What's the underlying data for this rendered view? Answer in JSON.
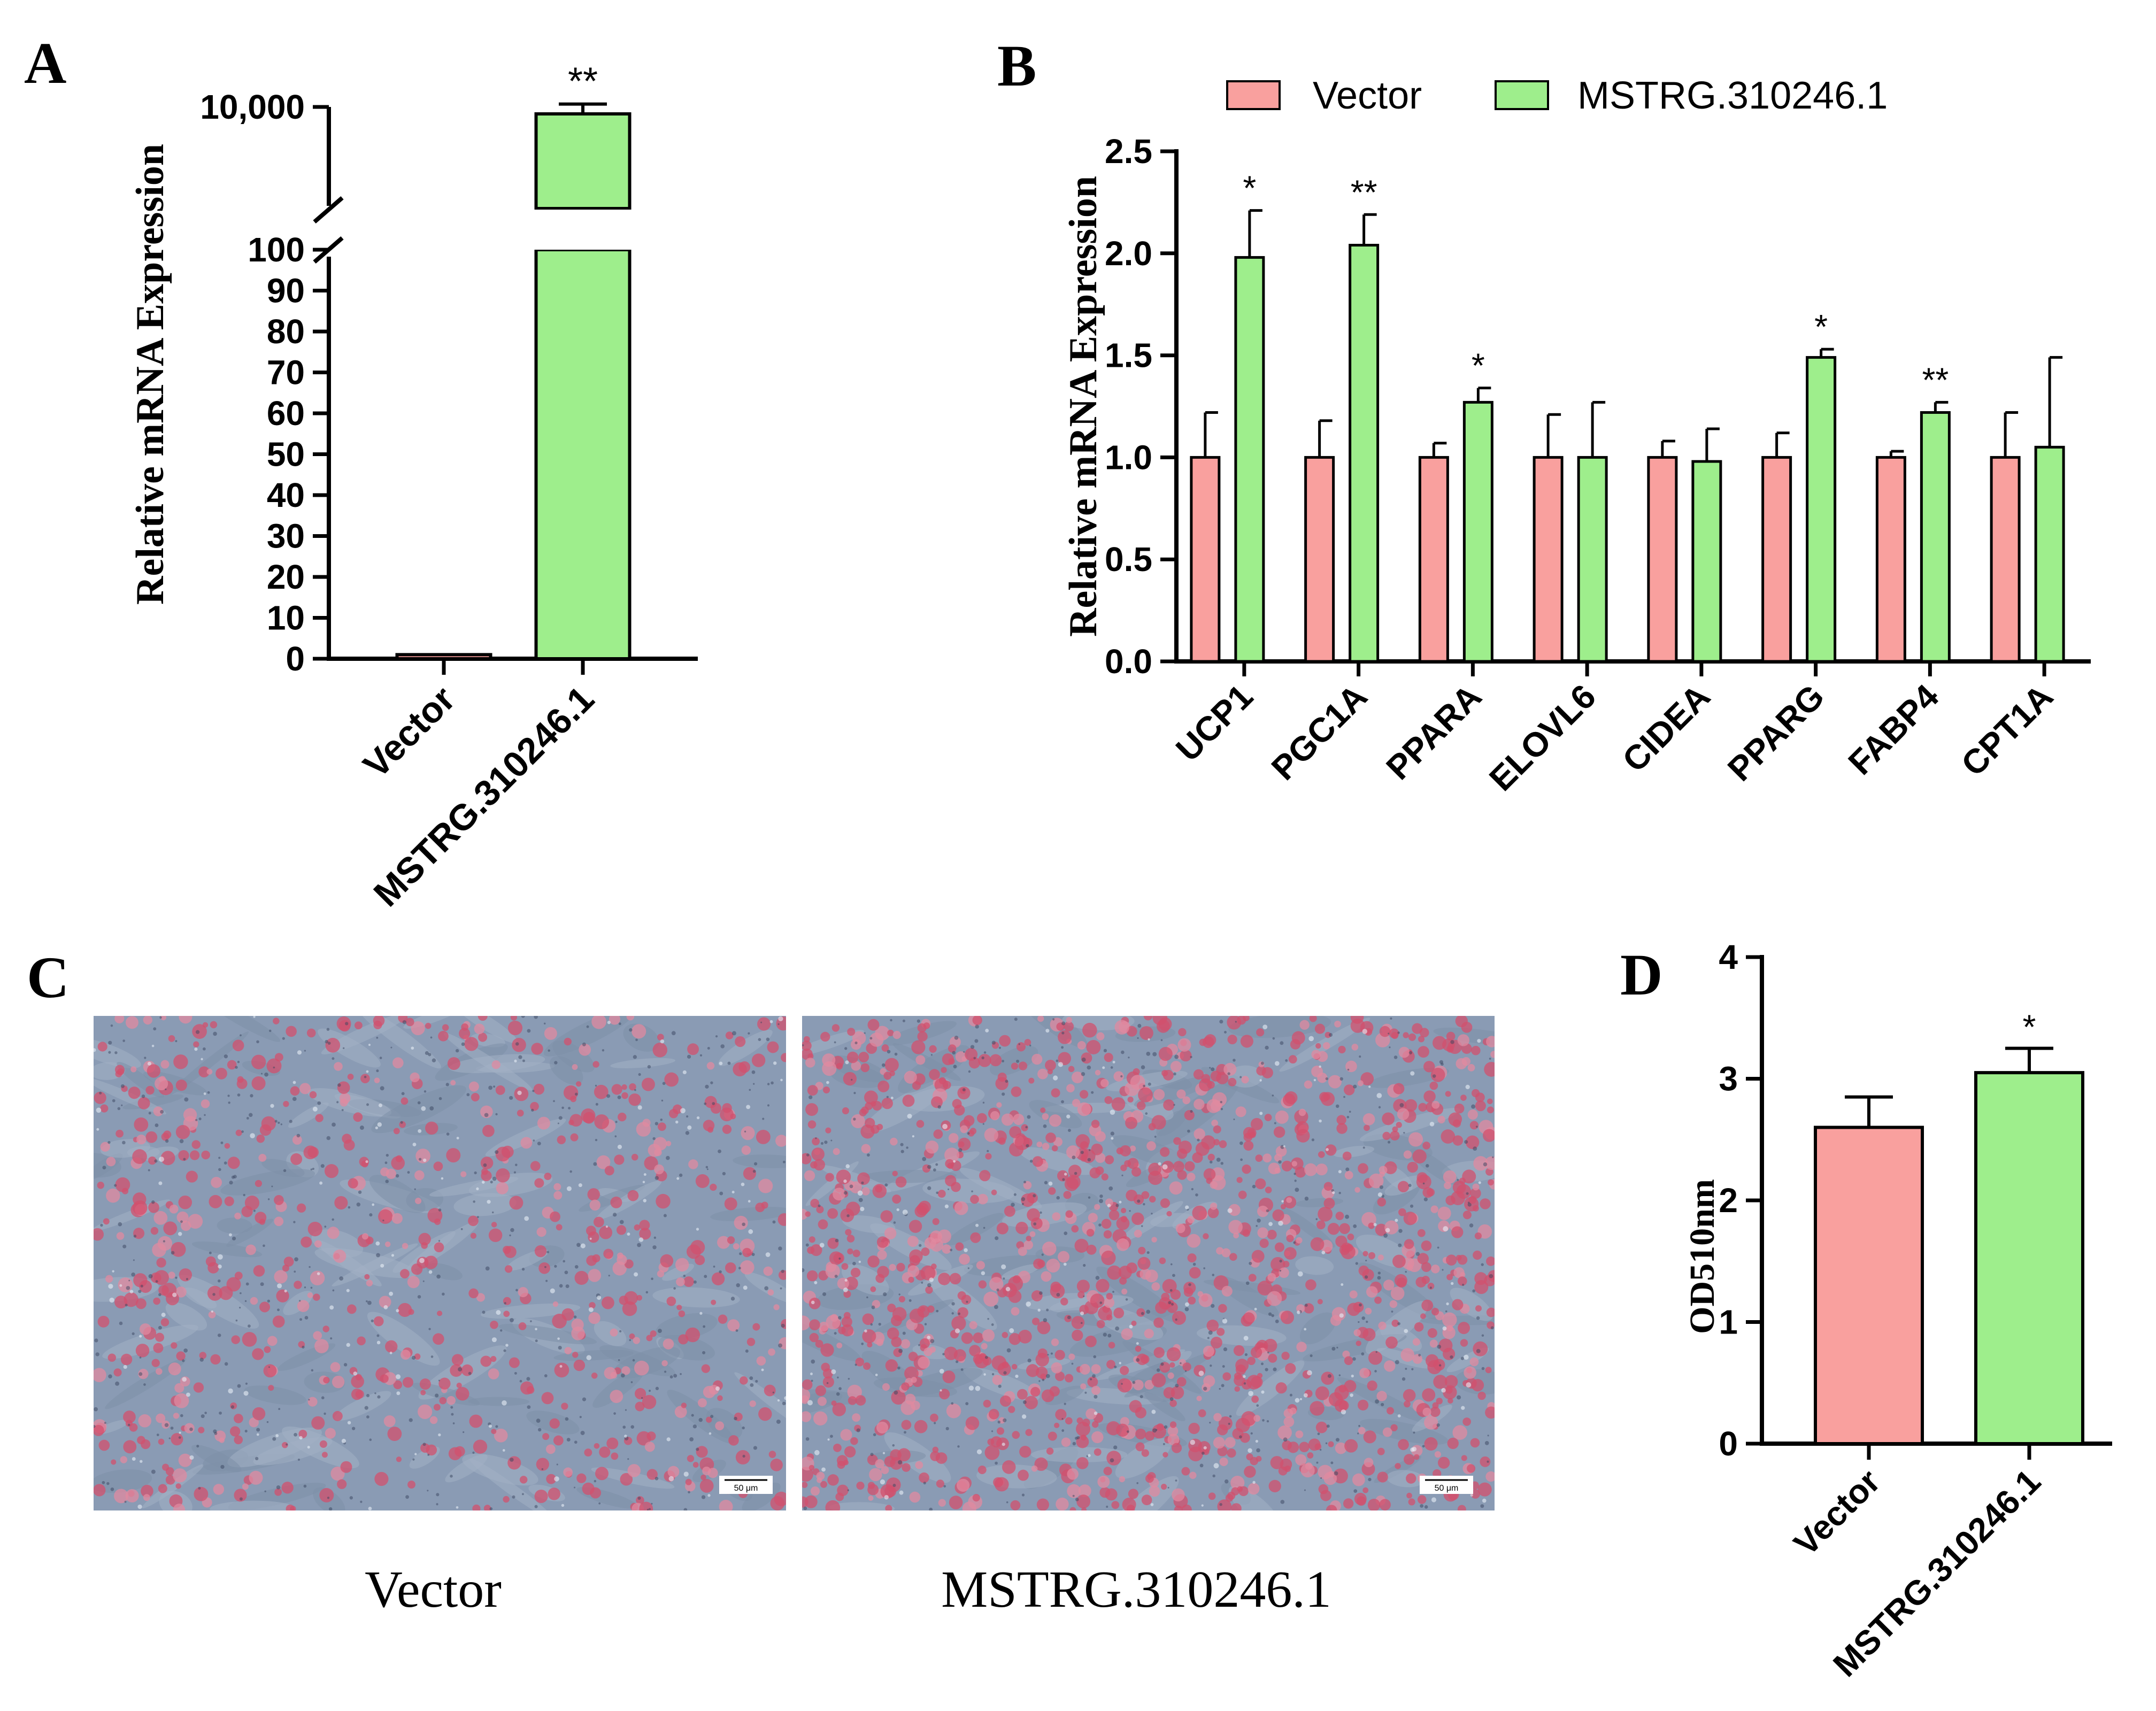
{
  "colors": {
    "vector": "#F9A09E",
    "mstrg": "#9EEE8C",
    "axis": "#000000",
    "micro_bg": "#8A9BB4",
    "micro_stain": "#D2506E"
  },
  "panels": {
    "A": {
      "label": "A",
      "ylabel": "Relative mRNA Expression",
      "bar_labels": {
        "vector": "Vector",
        "mstrg": "MSTRG.310246.1"
      }
    },
    "B": {
      "label": "B",
      "ylabel": "Relative mRNA Expression",
      "legend": {
        "vector": "Vector",
        "mstrg": "MSTRG.310246.1"
      }
    },
    "C": {
      "label": "C",
      "caption_left": "Vector",
      "caption_right": "MSTRG.310246.1",
      "scalebar_left": "50 μm",
      "scalebar_right": "50 μm"
    },
    "D": {
      "label": "D",
      "ylabel": "OD510nm"
    }
  },
  "chart_data": [
    {
      "id": "A",
      "type": "bar",
      "title": "",
      "ylabel": "Relative mRNA Expression",
      "broken_axis": true,
      "ylim_lower": [
        0,
        100
      ],
      "ytick_labels_lower": [
        "0",
        "10",
        "20",
        "30",
        "40",
        "50",
        "60",
        "70",
        "80",
        "90",
        "100"
      ],
      "ytick_labels_upper": [
        "10,000"
      ],
      "categories": [
        "Vector",
        "MSTRG.310246.1"
      ],
      "values": [
        1,
        9400
      ],
      "errors": [
        0.2,
        850
      ],
      "significance": [
        "",
        "**"
      ]
    },
    {
      "id": "B",
      "type": "bar",
      "title": "",
      "ylabel": "Relative mRNA Expression",
      "ylim": [
        0,
        2.5
      ],
      "ytick_labels": [
        "0.0",
        "0.5",
        "1.0",
        "1.5",
        "2.0",
        "2.5"
      ],
      "categories": [
        "UCP1",
        "PGC1A",
        "PPARA",
        "ELOVL6",
        "CIDEA",
        "PPARG",
        "FABP4",
        "CPT1A"
      ],
      "series": [
        {
          "name": "Vector",
          "values": [
            1.0,
            1.0,
            1.0,
            1.0,
            1.0,
            1.0,
            1.0,
            1.0
          ],
          "errors": [
            0.22,
            0.18,
            0.07,
            0.21,
            0.08,
            0.12,
            0.03,
            0.22
          ]
        },
        {
          "name": "MSTRG.310246.1",
          "values": [
            1.98,
            2.04,
            1.27,
            1.0,
            0.98,
            1.49,
            1.22,
            1.05
          ],
          "errors": [
            0.23,
            0.15,
            0.07,
            0.27,
            0.16,
            0.04,
            0.05,
            0.44
          ]
        }
      ],
      "significance": [
        "*",
        "**",
        "*",
        "",
        "",
        "*",
        "**",
        ""
      ]
    },
    {
      "id": "D",
      "type": "bar",
      "title": "",
      "ylabel": "OD510nm",
      "ylim": [
        0,
        4
      ],
      "ytick_labels": [
        "0",
        "1",
        "2",
        "3",
        "4"
      ],
      "categories": [
        "Vector",
        "MSTRG.310246.1"
      ],
      "values": [
        2.6,
        3.05
      ],
      "errors": [
        0.25,
        0.2
      ],
      "significance": [
        "",
        "*"
      ]
    }
  ]
}
